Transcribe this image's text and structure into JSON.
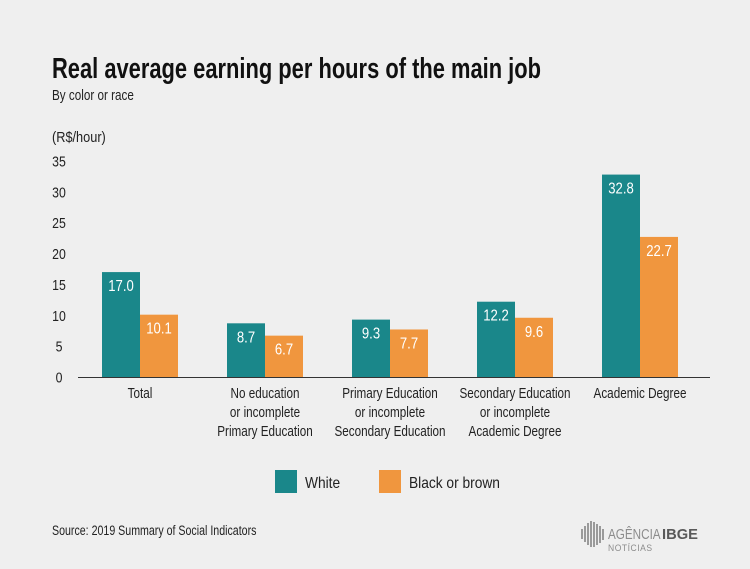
{
  "colors": {
    "background": "#efefef",
    "white_series": "#1a878a",
    "black_or_brown_series": "#f0963e"
  },
  "chart_data": {
    "type": "bar",
    "title": "Real average earning per hours of the main job",
    "subtitle": "By color or race",
    "ylabel": "(R$/hour)",
    "xlabel": "",
    "categories": [
      "Total",
      "No education\nor incomplete\nPrimary Education",
      "Primary Education\nor incomplete\nSecondary Education",
      "Secondary Education\nor incomplete\nAcademic Degree",
      "Academic Degree"
    ],
    "series": [
      {
        "name": "White",
        "color": "#1a878a",
        "values": [
          17.0,
          8.7,
          9.3,
          12.2,
          32.8
        ]
      },
      {
        "name": "Black or brown",
        "color": "#f0963e",
        "values": [
          10.1,
          6.7,
          7.7,
          9.6,
          22.7
        ]
      }
    ],
    "ylim": [
      0,
      35
    ],
    "yticks": [
      0,
      5,
      10,
      15,
      20,
      25,
      30,
      35
    ],
    "grid": false,
    "legend": "bottom"
  },
  "source": "Source: 2019 Summary of Social Indicators",
  "logo": {
    "agency": "AGÊNCIA",
    "ibge": "IBGE",
    "news": "NOTÍCIAS"
  }
}
